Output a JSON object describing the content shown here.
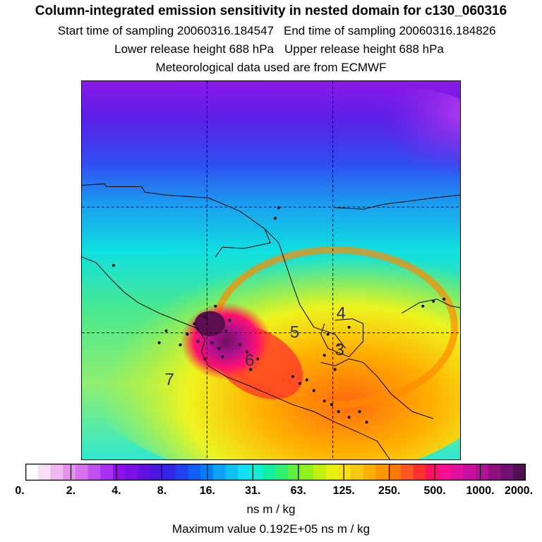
{
  "header": {
    "title": "Column-integrated emission sensitivity in nested domain for c130_060316",
    "start_label": "Start time of sampling 20060316.184547",
    "end_label": "End time of sampling 20060316.184826",
    "lower_label": "Lower release height  688 hPa",
    "upper_label": "Upper release height  688 hPa",
    "met_label": "Meteorological data used are from ECMWF"
  },
  "map": {
    "region": "Mexico / Gulf of Mexico / Central America",
    "contour_labels": [
      "4",
      "5",
      "3",
      "6",
      "7"
    ],
    "colors": {
      "deep_purple": "#7a10e6",
      "blue": "#2f4ff0",
      "cyan": "#10e8e8",
      "green": "#48e880",
      "yellow": "#f5f51a",
      "orange": "#ffb000",
      "red": "#ff3a2a",
      "magenta": "#e0106a",
      "dark_purple": "#6a1060"
    }
  },
  "colorbar": {
    "tick_labels": [
      "0.",
      "2.",
      "4.",
      "8.",
      "16.",
      "31.",
      "63.",
      "125.",
      "250.",
      "500.",
      "1000.",
      "2000."
    ],
    "colors": [
      "#ffffff",
      "#f8e0f8",
      "#f0b8f0",
      "#e890f0",
      "#d870f0",
      "#c050f0",
      "#a830f0",
      "#9010e8",
      "#7a10e6",
      "#6010e0",
      "#4818e0",
      "#3028e8",
      "#2040f0",
      "#1060f8",
      "#0080f8",
      "#10a0f8",
      "#10c0f0",
      "#10e0f0",
      "#10f0d0",
      "#10f0a0",
      "#30f070",
      "#60f040",
      "#90f020",
      "#c0f010",
      "#e8f010",
      "#f8e010",
      "#f8c810",
      "#ffb000",
      "#ff9800",
      "#ff7a00",
      "#ff5820",
      "#ff3030",
      "#ff1060",
      "#f81090",
      "#e010a0",
      "#c810a0",
      "#b01098",
      "#901080",
      "#701070",
      "#501050"
    ],
    "units": "ns m / kg",
    "max_value": "Maximum value  0.192E+05 ns m / kg"
  }
}
